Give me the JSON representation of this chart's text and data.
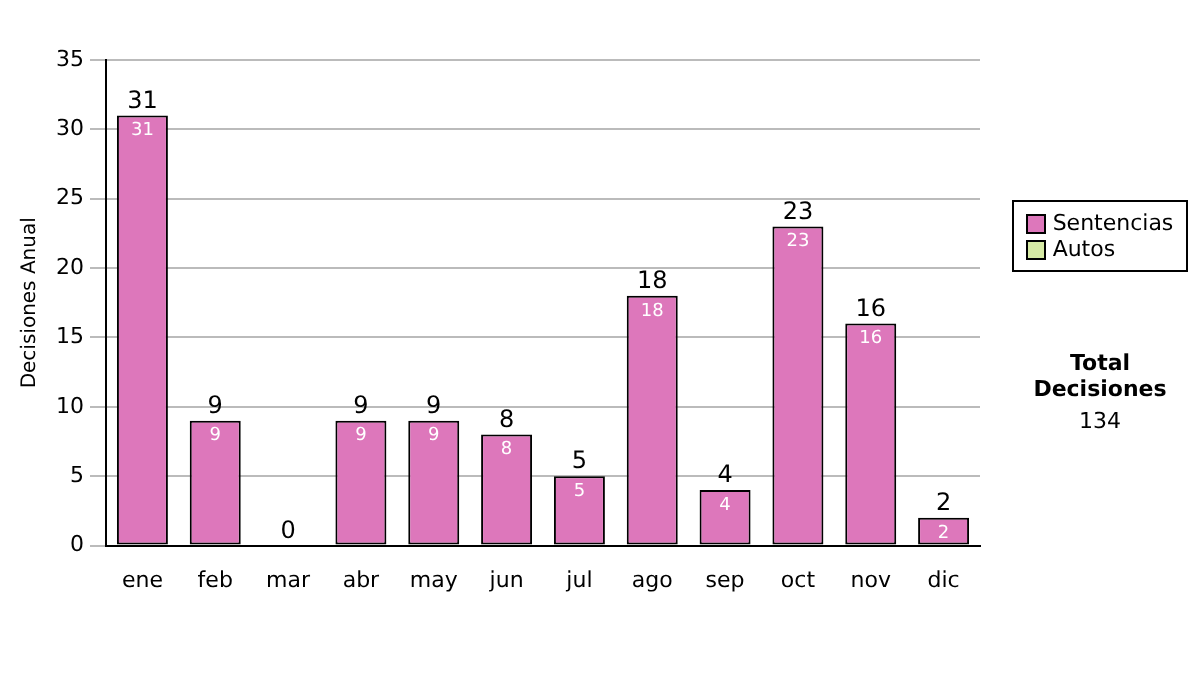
{
  "chart_data": {
    "type": "bar",
    "ylabel": "Decisiones Anual",
    "categories": [
      "ene",
      "feb",
      "mar",
      "abr",
      "may",
      "jun",
      "jul",
      "ago",
      "sep",
      "oct",
      "nov",
      "dic"
    ],
    "series": [
      {
        "name": "Sentencias",
        "color": "#dd77bb",
        "values": [
          31,
          9,
          0,
          9,
          9,
          8,
          5,
          18,
          4,
          23,
          16,
          2
        ],
        "value_labels": [
          "31",
          "9",
          null,
          "9",
          "9",
          "8",
          "5",
          "18",
          "4",
          "23",
          "16",
          "2"
        ]
      },
      {
        "name": "Autos",
        "color": "#d6eaa4",
        "values": [
          0,
          0,
          0,
          0,
          0,
          0,
          0,
          0,
          0,
          0,
          0,
          0
        ]
      }
    ],
    "stacked": true,
    "totals": [
      "31",
      "9",
      "0",
      "9",
      "9",
      "8",
      "5",
      "18",
      "4",
      "23",
      "16",
      "2"
    ],
    "ylim": [
      0,
      35
    ],
    "yticks": [
      0,
      5,
      10,
      15,
      20,
      25,
      30,
      35
    ],
    "grid": "y",
    "legend": "right",
    "annotations": [
      "Total Decisiones",
      "134"
    ]
  }
}
